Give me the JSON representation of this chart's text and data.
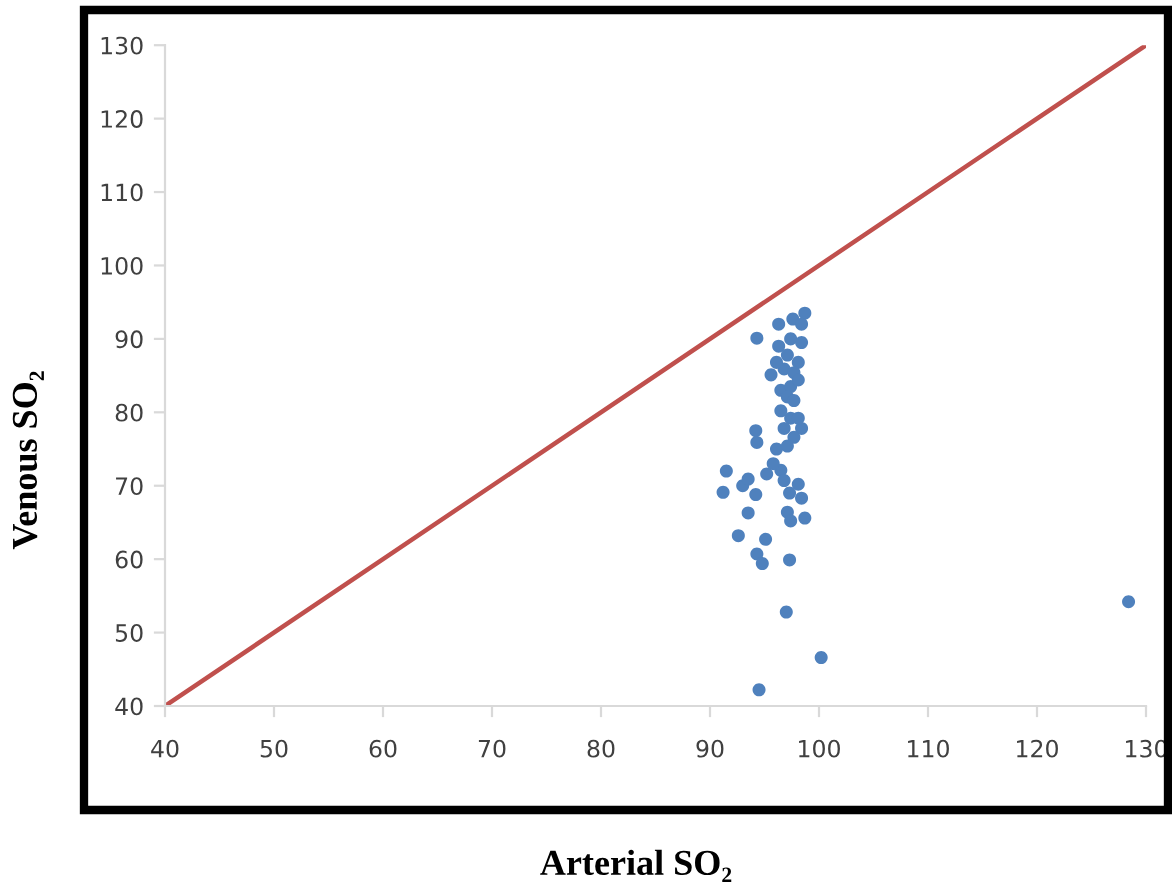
{
  "chart_data": {
    "type": "scatter",
    "xlabel": "Arterial SO₂",
    "ylabel": "Venous SO₂",
    "xlim": [
      40,
      130
    ],
    "ylim": [
      40,
      130
    ],
    "xticks": [
      40,
      50,
      60,
      70,
      80,
      90,
      100,
      110,
      120,
      130
    ],
    "yticks": [
      40,
      50,
      60,
      70,
      80,
      90,
      100,
      110,
      120,
      130
    ],
    "grid": false,
    "legend": false,
    "series": [
      {
        "type": "line",
        "color": "#c0504d",
        "marker": "none",
        "line_style": "solid",
        "x": [
          40,
          130
        ],
        "values": [
          40,
          130
        ]
      },
      {
        "color": "#4f81bd",
        "marker": "circle",
        "x": [
          94.3,
          96.3,
          97.6,
          98.7,
          98.4,
          96.3,
          97.4,
          98.4,
          95.6,
          97.1,
          98.1,
          96.8,
          97.7,
          96.5,
          97.4,
          97.1,
          97.7,
          96.5,
          97.4,
          96.8,
          98.4,
          97.7,
          94.2,
          94.3,
          96.1,
          97.1,
          96.5,
          95.2,
          95.8,
          96.8,
          91.5,
          91.2,
          93.0,
          93.5,
          94.2,
          98.1,
          97.3,
          98.4,
          93.5,
          97.1,
          98.7,
          97.4,
          92.6,
          95.1,
          94.3,
          94.8,
          97.3,
          97.0,
          100.2,
          94.5,
          128.4,
          98.1,
          96.1,
          98.1
        ],
        "values": [
          90.1,
          92.0,
          92.7,
          93.5,
          92.0,
          89.0,
          90.0,
          89.5,
          85.1,
          87.8,
          86.8,
          85.9,
          85.4,
          83.0,
          83.5,
          82.1,
          81.6,
          80.2,
          79.2,
          77.8,
          77.8,
          76.6,
          77.5,
          75.9,
          75.0,
          75.4,
          72.1,
          71.6,
          73.0,
          70.7,
          72.0,
          69.1,
          70.0,
          70.9,
          68.8,
          70.2,
          69.0,
          68.3,
          66.3,
          66.4,
          65.6,
          65.2,
          63.2,
          62.7,
          60.7,
          59.4,
          59.9,
          52.8,
          46.6,
          42.2,
          54.2,
          79.2,
          86.8,
          84.4
        ]
      }
    ]
  }
}
